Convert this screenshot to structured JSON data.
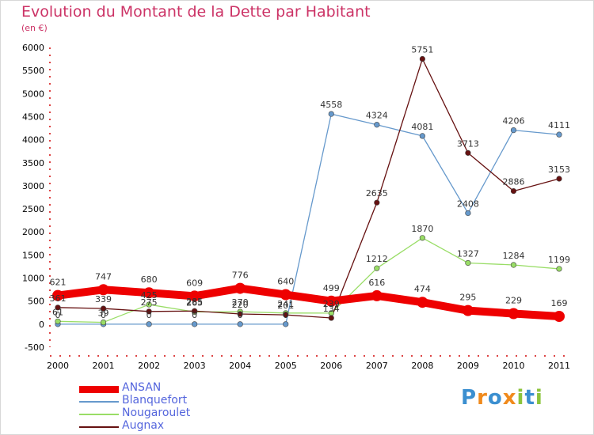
{
  "title": "Evolution du Montant de la Dette par Habitant",
  "subtitle": "(en €)",
  "logo": {
    "text": "Proxiti",
    "letters": [
      {
        "ch": "P",
        "color": "#3b8fd0"
      },
      {
        "ch": "r",
        "color": "#f08a1c"
      },
      {
        "ch": "o",
        "color": "#3b8fd0"
      },
      {
        "ch": "x",
        "color": "#f08a1c"
      },
      {
        "ch": "i",
        "color": "#8cc43c"
      },
      {
        "ch": "t",
        "color": "#3b8fd0"
      },
      {
        "ch": "i",
        "color": "#8cc43c"
      }
    ]
  },
  "chart_data": {
    "type": "line",
    "title": "Evolution du Montant de la Dette par Habitant",
    "subtitle": "(en €)",
    "x": [
      "2000",
      "2001",
      "2002",
      "2003",
      "2004",
      "2005",
      "2006",
      "2007",
      "2008",
      "2009",
      "2010",
      "2011"
    ],
    "ylim": [
      -500,
      6000
    ],
    "yticks": [
      -500,
      0,
      500,
      1000,
      1500,
      2000,
      2500,
      3000,
      3500,
      4000,
      4500,
      5000,
      5500,
      6000
    ],
    "grid": false,
    "legend_position": "bottom-left",
    "series": [
      {
        "name": "ANSAN",
        "color": "#ee0000",
        "values": [
          621,
          747,
          680,
          609,
          776,
          640,
          499,
          616,
          474,
          295,
          229,
          169
        ]
      },
      {
        "name": "Blanquefort",
        "color": "#6699cc",
        "values": [
          0,
          0,
          0,
          0,
          0,
          0,
          4558,
          4324,
          4081,
          2408,
          4206,
          4111
        ]
      },
      {
        "name": "Nougaroulet",
        "color": "#99dd66",
        "values": [
          61,
          39,
          425,
          265,
          270,
          241,
          239,
          1212,
          1870,
          1327,
          1284,
          1199
        ]
      },
      {
        "name": "Augnax",
        "color": "#661111",
        "values": [
          361,
          339,
          275,
          285,
          220,
          201,
          134,
          2635,
          5751,
          3713,
          2886,
          3153
        ]
      }
    ],
    "data_labels": {
      "ANSAN": [
        "621",
        "747",
        "680",
        "609",
        "776",
        "640",
        "499",
        "616",
        "474",
        "295",
        "229",
        "169"
      ],
      "Blanquefort": [
        "0",
        "0",
        "0",
        "0",
        "0",
        "0",
        "4558",
        "4324",
        "4081",
        "2408",
        "4206",
        "4111"
      ],
      "Nougaroulet": [
        "61",
        "39",
        "425",
        "265",
        "270",
        "241",
        "239",
        "1212",
        "1870",
        "1327",
        "1284",
        "1199"
      ],
      "Augnax": [
        "361",
        "339",
        "275",
        "285",
        "220",
        "201",
        "134",
        "2635",
        "5751",
        "3713",
        "2886",
        "3153"
      ]
    }
  }
}
